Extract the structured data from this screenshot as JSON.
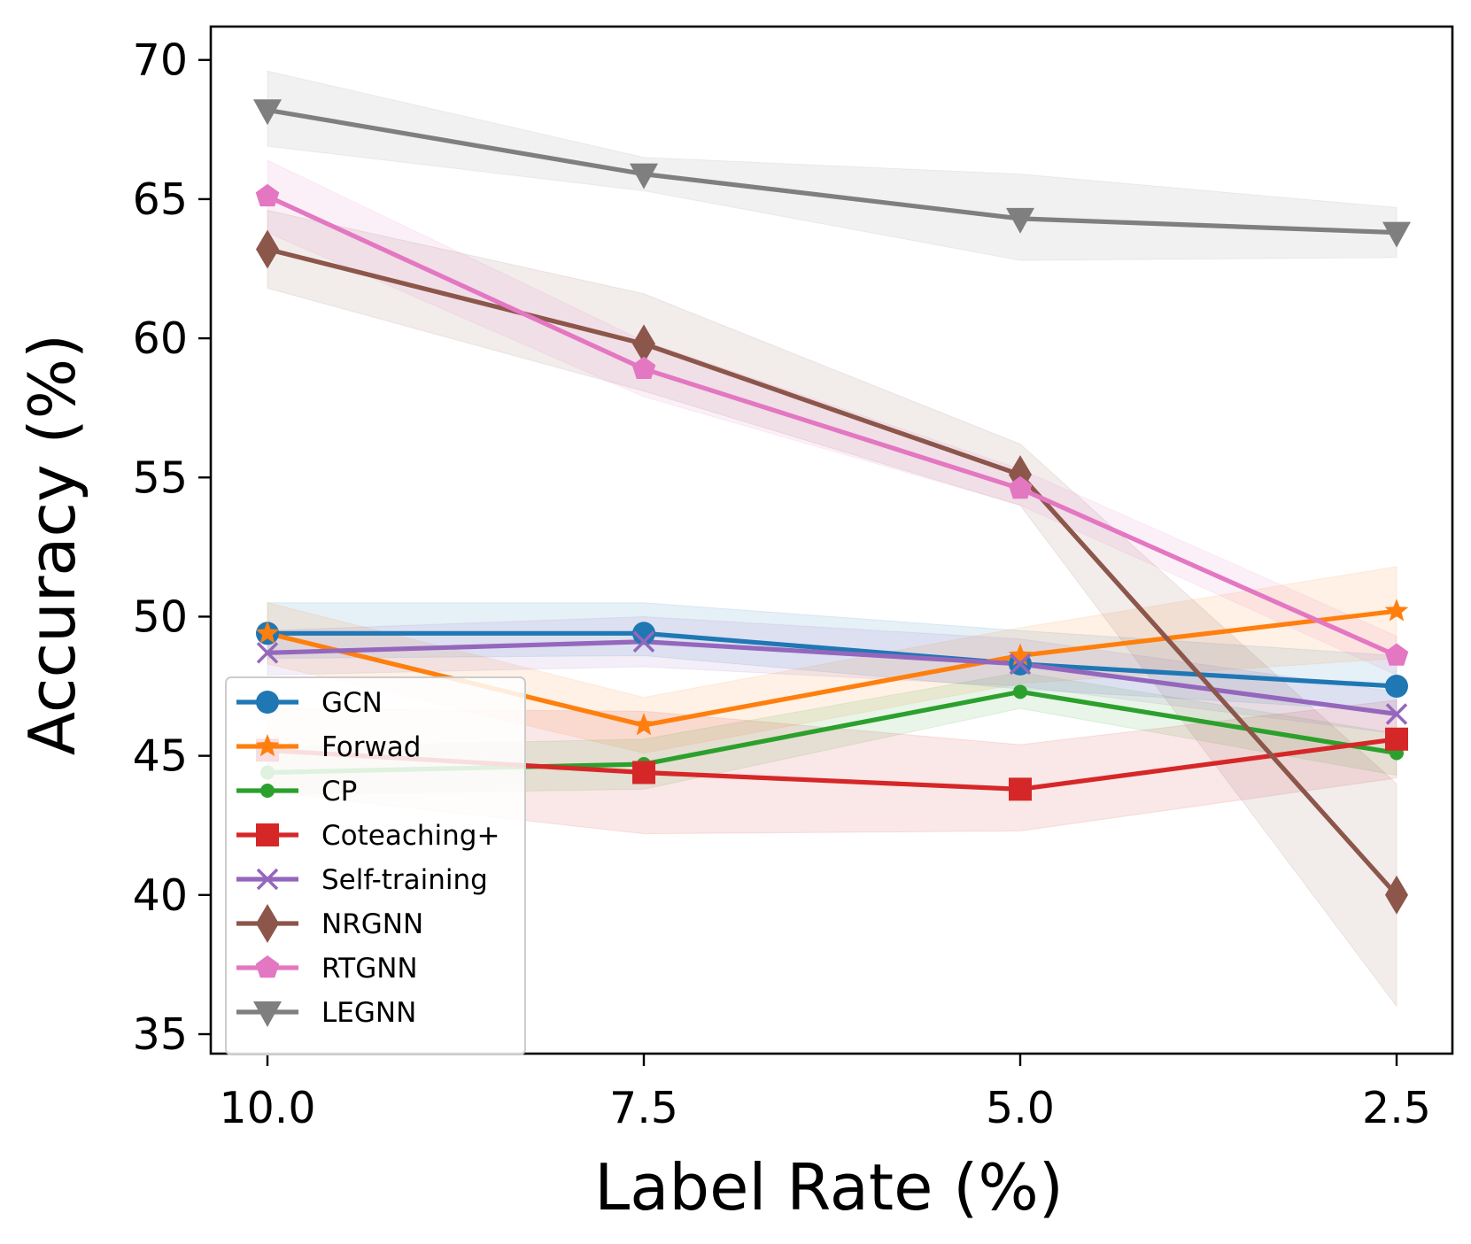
{
  "chart_data": {
    "type": "line",
    "title": "",
    "xlabel": "Label Rate (%)",
    "ylabel": "Accuracy (%)",
    "categories": [
      "10.0",
      "7.5",
      "5.0",
      "2.5"
    ],
    "ylim": [
      34.3,
      71.2
    ],
    "yticks": [
      35,
      40,
      45,
      50,
      55,
      60,
      65,
      70
    ],
    "grid": false,
    "legend_position": "lower-left",
    "series": [
      {
        "name": "GCN",
        "color": "#1f77b4",
        "marker": "circle",
        "values": [
          49.4,
          49.4,
          48.3,
          47.5
        ],
        "lower": [
          48.5,
          48.6,
          47.4,
          46.6
        ],
        "upper": [
          50.5,
          50.5,
          49.5,
          48.6
        ]
      },
      {
        "name": "Forwad",
        "color": "#ff7f0e",
        "marker": "star",
        "values": [
          49.4,
          46.1,
          48.6,
          50.2
        ],
        "lower": [
          48.3,
          45.1,
          47.6,
          48.5
        ],
        "upper": [
          50.5,
          47.1,
          49.6,
          51.8
        ]
      },
      {
        "name": "CP",
        "color": "#2ca02c",
        "marker": "point",
        "values": [
          44.4,
          44.7,
          47.3,
          45.1
        ],
        "lower": [
          43.6,
          43.8,
          46.7,
          44.3
        ],
        "upper": [
          45.3,
          45.6,
          48.0,
          45.8
        ]
      },
      {
        "name": "Coteaching+",
        "color": "#d62728",
        "marker": "square",
        "values": [
          45.2,
          44.4,
          43.8,
          45.6
        ],
        "lower": [
          43.7,
          42.2,
          42.3,
          44.2
        ],
        "upper": [
          46.7,
          46.6,
          45.4,
          47.0
        ]
      },
      {
        "name": "Self-training",
        "color": "#9467bd",
        "marker": "x",
        "values": [
          48.7,
          49.1,
          48.3,
          46.5
        ],
        "lower": [
          47.9,
          48.2,
          47.5,
          45.8
        ],
        "upper": [
          49.5,
          50.0,
          49.2,
          47.3
        ]
      },
      {
        "name": "NRGNN",
        "color": "#8c564b",
        "marker": "thin_diamond",
        "values": [
          63.2,
          59.8,
          55.1,
          40.0
        ],
        "lower": [
          61.8,
          58.1,
          54.0,
          36.0
        ],
        "upper": [
          64.6,
          61.6,
          56.2,
          44.0
        ]
      },
      {
        "name": "RTGNN",
        "color": "#e377c2",
        "marker": "pentagon",
        "values": [
          65.1,
          58.9,
          54.6,
          48.6
        ],
        "lower": [
          63.8,
          57.9,
          54.0,
          47.9
        ],
        "upper": [
          66.4,
          59.9,
          55.3,
          49.3
        ]
      },
      {
        "name": "LEGNN",
        "color": "#7f7f7f",
        "marker": "triangle_down",
        "values": [
          68.2,
          65.9,
          64.3,
          63.8
        ],
        "lower": [
          66.9,
          65.3,
          62.8,
          62.9
        ],
        "upper": [
          69.6,
          66.5,
          65.9,
          64.7
        ]
      }
    ]
  }
}
